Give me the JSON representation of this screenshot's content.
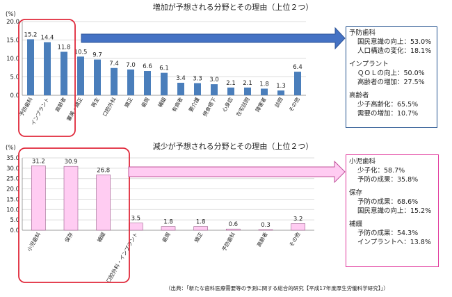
{
  "chart_data": [
    {
      "type": "bar",
      "title": "増加が予想される分野とその理由（上位２つ）",
      "ylabel": "(%)",
      "ylim": [
        0,
        20
      ],
      "yticks": [
        "0.0",
        "5.0",
        "10.0",
        "15.0",
        "20.0"
      ],
      "grid": true,
      "categories": [
        "予防歯科",
        "インプラント",
        "高齢者",
        "審美・矯正",
        "再生",
        "口腔外科",
        "矯正",
        "歯周",
        "補綴",
        "有病者",
        "要介護",
        "摂食嚥下",
        "心身症",
        "在宅訪問",
        "障害者",
        "訪問",
        "その他"
      ],
      "value_labels": [
        "15.2",
        "14.4",
        "11.8",
        "10.5",
        "9.7",
        "7.4",
        "7.0",
        "6.6",
        "6.1",
        "3.4",
        "3.3",
        "3.0",
        "2.1",
        "2.1",
        "1.8",
        "1.3",
        "6.4"
      ],
      "values": [
        15.2,
        14.4,
        11.8,
        10.5,
        9.7,
        7.4,
        7.0,
        6.6,
        6.1,
        3.4,
        3.3,
        3.0,
        2.1,
        2.1,
        1.8,
        1.3,
        6.4
      ],
      "bar_color": "#4a7ebb",
      "highlight_color": "#e0283a"
    },
    {
      "type": "bar",
      "title": "減少が予想される分野とその理由（上位２つ）",
      "ylabel": "(%)",
      "ylim": [
        0,
        35
      ],
      "yticks": [
        "0.0",
        "5.0",
        "10.0",
        "15.0",
        "20.0",
        "25.0",
        "30.0",
        "35.0"
      ],
      "grid": true,
      "categories": [
        "小児歯科",
        "保存",
        "補綴",
        "口腔外科・インプラント",
        "歯周",
        "矯正",
        "予防歯科",
        "高齢者",
        "その他"
      ],
      "value_labels": [
        "31.2",
        "30.9",
        "26.8",
        "3.5",
        "1.8",
        "1.8",
        "0.6",
        "0.3",
        "3.2"
      ],
      "values": [
        31.2,
        30.9,
        26.8,
        3.5,
        1.8,
        1.8,
        0.6,
        0.3,
        3.2
      ],
      "bar_color": "#ffccf2",
      "bar_stroke": "#9a5a8a",
      "highlight_color": "#e0283a"
    }
  ],
  "increase_reasons": [
    {
      "field": "予防歯科",
      "items": [
        "国民意識の向上：53.0%",
        "人口構造の変化：18.1%"
      ]
    },
    {
      "field": "インプラント",
      "items": [
        "ＱＯＬの向上：50.0%",
        "高齢者の増加：27.5%"
      ]
    },
    {
      "field": "高齢者",
      "items": [
        "少子高齢化：65.5%",
        "需要の増加：10.7%"
      ]
    }
  ],
  "decrease_reasons": [
    {
      "field": "小児歯科",
      "items": [
        "少子化：58.7%",
        "予防の成果：35.8%"
      ]
    },
    {
      "field": "保存",
      "items": [
        "予防の成果：68.6%",
        "国民意識の向上：15.2%"
      ]
    },
    {
      "field": "補綴",
      "items": [
        "予防の成果：54.3%",
        "インプラントへ：13.8%"
      ]
    }
  ],
  "source": "（出典：「新たな歯科医療需要等の予測に関する総合的研究【平成17年度厚生労働科学研究】」）",
  "colors": {
    "arrow_top_fill": "#4472c4",
    "arrow_top_stroke": "#2f5597",
    "arrow_bottom_fill": "#ffccf2",
    "arrow_bottom_stroke": "#c0509a",
    "box_top_border": "#1f4e8c",
    "box_bottom_border": "#e0369b"
  }
}
